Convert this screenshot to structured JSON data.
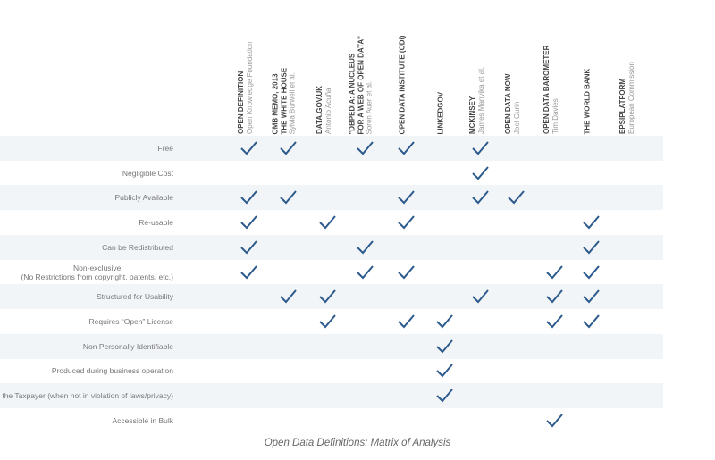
{
  "chart_data": {
    "type": "table",
    "title": "Open Data Definitions: Matrix of Analysis",
    "columns": [
      {
        "title": "OPEN DEFINITION",
        "subtitle": "Open Knowledge Foundation"
      },
      {
        "title": "OMB MEMO, 2013\nTHE WHITE HOUSE",
        "subtitle": "Sylvia Burwell et al."
      },
      {
        "title": "DATA.GOV.UK",
        "subtitle": "Antonio Acuña"
      },
      {
        "title": "\"DBPEDIA: A NUCLEUS\nFOR A WEB OF OPEN DATA\"",
        "subtitle": "Soren Auer et al."
      },
      {
        "title": "OPEN DATA INSTITUTE (ODI)",
        "subtitle": ""
      },
      {
        "title": "LINKEDGOV",
        "subtitle": ""
      },
      {
        "title": "MCKINSEY",
        "subtitle": "James Manyika et al."
      },
      {
        "title": "OPEN DATA NOW",
        "subtitle": "Joel Gurin"
      },
      {
        "title": "OPEN DATA BAROMETER",
        "subtitle": "Tim Davies"
      },
      {
        "title": "THE WORLD BANK",
        "subtitle": ""
      },
      {
        "title": "EPSIPLATFORM",
        "subtitle": "European Commission"
      }
    ],
    "rows": [
      {
        "label": "Free",
        "checks": [
          0,
          1,
          3,
          4,
          6
        ]
      },
      {
        "label": "Negligible Cost",
        "checks": [
          6
        ]
      },
      {
        "label": "Publicly Available",
        "checks": [
          0,
          1,
          4,
          6,
          7
        ]
      },
      {
        "label": "Re-usable",
        "checks": [
          0,
          2,
          4,
          9
        ]
      },
      {
        "label": "Can be Redistributed",
        "checks": [
          0,
          3,
          9
        ]
      },
      {
        "label": "Non-exclusive\n(No Restrictions from copyright, patents, etc.)",
        "checks": [
          0,
          3,
          4,
          8,
          9
        ]
      },
      {
        "label": "Structured for Usability",
        "checks": [
          1,
          2,
          6,
          8,
          9
        ]
      },
      {
        "label": "Requires “Open” License",
        "checks": [
          2,
          4,
          5,
          8,
          9
        ]
      },
      {
        "label": "Non Personally Identifiable",
        "checks": [
          5
        ]
      },
      {
        "label": "Produced during business operation",
        "checks": [
          5
        ]
      },
      {
        "label": "Belongs to the Taxpayer (when not in violation of laws/privacy)",
        "checks": [
          5
        ]
      },
      {
        "label": "Accessible in Bulk",
        "checks": [
          8
        ]
      }
    ],
    "check_color": "#2c5a8c",
    "shade_color": "#f2f5f8"
  }
}
